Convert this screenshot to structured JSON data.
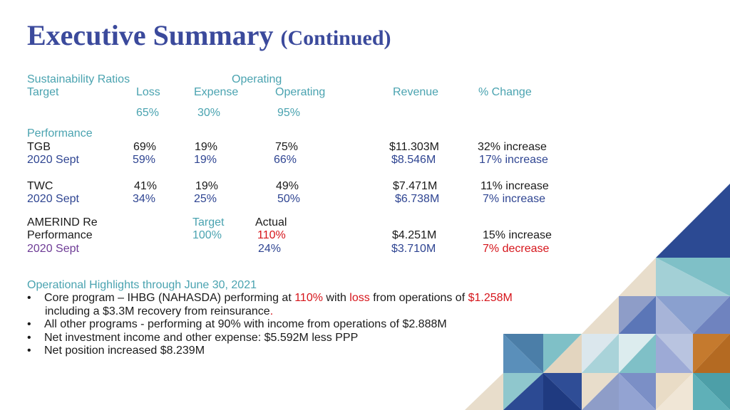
{
  "title": {
    "main": "Executive Summary",
    "sub": "(Continued)"
  },
  "ratios": {
    "section_label": "Sustainability Ratios",
    "operating_label": "Operating",
    "target_label": "Target",
    "headers": {
      "loss": "Loss",
      "expense": "Expense",
      "operating": "Operating",
      "revenue": "Revenue",
      "change": "% Change"
    },
    "targets": {
      "loss": "65%",
      "expense": "30%",
      "operating": "95%"
    }
  },
  "performance": {
    "label": "Performance",
    "rows": [
      {
        "name": "TGB",
        "loss": "69%",
        "expense": "19%",
        "operating": "75%",
        "revenue": "$11.303M",
        "change": "32% increase"
      },
      {
        "name": "2020 Sept",
        "loss": "59%",
        "expense": "19%",
        "operating": "66%",
        "revenue": "$8.546M",
        "change": "17% increase"
      },
      {
        "name": "TWC",
        "loss": "41%",
        "expense": "19%",
        "operating": "49%",
        "revenue": "$7.471M",
        "change": "11% increase"
      },
      {
        "name": "2020 Sept",
        "loss": "34%",
        "expense": "25%",
        "operating": "50%",
        "revenue": "$6.738M",
        "change": "7% increase"
      }
    ]
  },
  "amerind": {
    "name": "AMERIND Re",
    "perf_label": "Performance",
    "sept_label": "2020 Sept",
    "target_label": "Target",
    "actual_label": "Actual",
    "target_value": "100%",
    "actual_value": "110%",
    "sept_value": "24%",
    "revenue": "$4.251M",
    "change": "15% increase",
    "sept_revenue": "$3.710M",
    "sept_change": "7% decrease"
  },
  "highlights": {
    "heading": "Operational Highlights through June 30, 2021",
    "bullet_char": "•",
    "b1": {
      "p1": "Core program – IHBG (NAHASDA) performing at ",
      "v1": "110%",
      "p2": " with ",
      "v2": "loss",
      "p3": " from operations of ",
      "v3": "$1.258M"
    },
    "b1_cont": {
      "text": "including a $3.3M recovery from reinsurance",
      "end": "."
    },
    "b2": "All other programs  - performing at 90% with income from operations of $2.888M",
    "b3": "Net investment income and other expense: $5.592M less PPP",
    "b4": "Net position increased $8.239M"
  },
  "colors": {
    "title": "#3b4a9c",
    "teal": "#4aa3b0",
    "blue": "#2f4592",
    "red": "#d6151b",
    "purple": "#6e3c96"
  }
}
